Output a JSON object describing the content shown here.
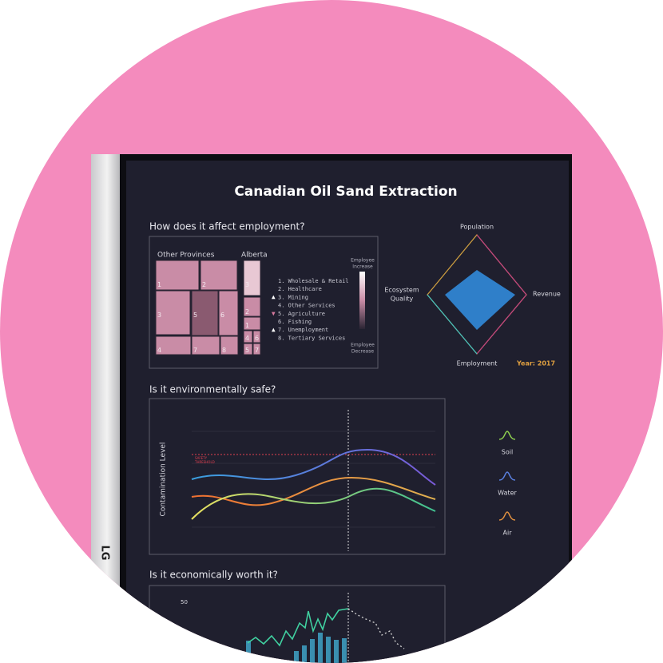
{
  "title": "Canadian Oil Sand Extraction",
  "brand": "LG",
  "employment": {
    "heading": "How does it affect employment?",
    "groups": [
      "Other Provinces",
      "Alberta"
    ],
    "other_cells": [
      "1",
      "2",
      "3",
      "5",
      "6",
      "4",
      "7",
      "8"
    ],
    "alberta_cells": [
      "3",
      "2",
      "1",
      "4",
      "6",
      "5",
      "7"
    ],
    "legend": [
      "1. Wholesale & Retail",
      "2. Healthcare",
      "3. Mining",
      "4. Other Services",
      "5. Agriculture",
      "6. Fishing",
      "7. Unemployment",
      "8. Tertiary Services"
    ],
    "scale_top": [
      "Employee",
      "Increase"
    ],
    "scale_bottom": [
      "Employee",
      "Decrease"
    ]
  },
  "radar": {
    "axes": [
      "Population",
      "Revenue",
      "Employment"
    ],
    "left_axis": [
      "Ecosystem",
      "Quality"
    ],
    "year": "Year: 2017"
  },
  "environment": {
    "heading": "Is it environmentally safe?",
    "y_label": "Contamination Level",
    "threshold": [
      "SAFETY",
      "THRESHOLD"
    ],
    "legend": [
      "Soil",
      "Water",
      "Air"
    ]
  },
  "economy": {
    "heading": "Is it economically worth it?",
    "tick": "50"
  }
}
